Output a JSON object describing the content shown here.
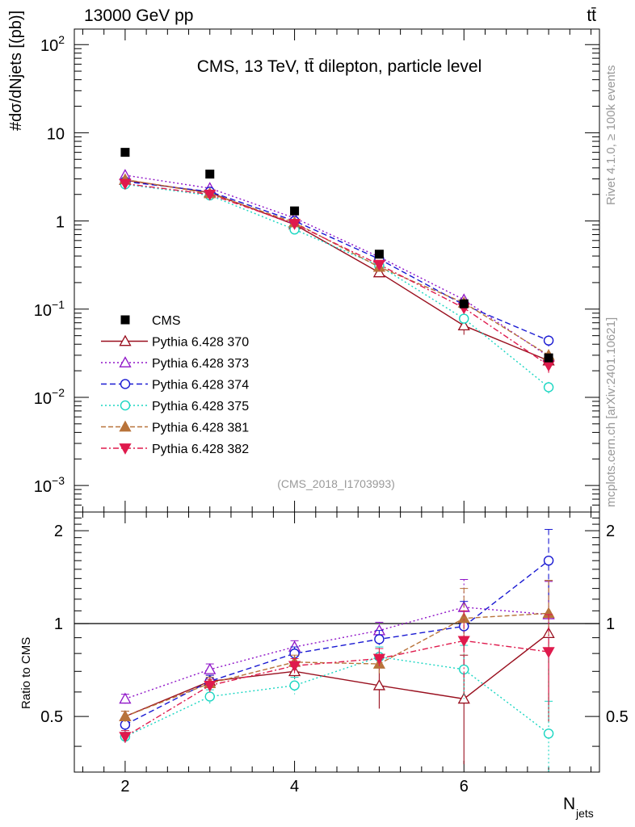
{
  "header": {
    "left": "13000 GeV pp",
    "right": "tt̄"
  },
  "side_text": {
    "rivet": "Rivet 4.1.0, ≥ 100k events",
    "mcplots": "mcplots.cern.ch [arXiv:2401.10621]"
  },
  "chart_data": {
    "type": "scatter",
    "title": "CMS, 13 TeV, tt̄ dilepton, particle level",
    "analysis_id": "(CMS_2018_I1703993)",
    "xlabel": "N",
    "xlabel_sub": "jets",
    "ylabel": "#dσ/dNjets [(pb)]",
    "ratio_ylabel": "Ratio to CMS",
    "x": [
      2,
      3,
      4,
      5,
      6,
      7
    ],
    "xlim": [
      1.4,
      7.6
    ],
    "ylim": [
      0.0005,
      150
    ],
    "yscale": "log",
    "ratio_ylim": [
      0.33,
      2.3
    ],
    "ratio_reference": 1,
    "x_tick_labels": [
      "2",
      "4",
      "6"
    ],
    "y_tick_labels": [
      {
        "value": 100,
        "base": "10",
        "exp": "2"
      },
      {
        "value": 10,
        "base": "10",
        "exp": ""
      },
      {
        "value": 1,
        "base": "1",
        "exp": ""
      },
      {
        "value": 0.1,
        "base": "10",
        "exp": "−1"
      },
      {
        "value": 0.01,
        "base": "10",
        "exp": "−2"
      },
      {
        "value": 0.001,
        "base": "10",
        "exp": "−3"
      }
    ],
    "ratio_tick_labels": [
      "0.5",
      "1",
      "2"
    ],
    "data": {
      "name": "CMS",
      "values": [
        6.0,
        3.4,
        1.3,
        0.42,
        0.115,
        0.028
      ],
      "color": "#000000"
    },
    "series": [
      {
        "name": "Pythia 6.428 370",
        "color": "#990f1e",
        "dash": "",
        "marker": "tri-up-open",
        "values": [
          2.9,
          2.1,
          0.91,
          0.26,
          0.065,
          0.026
        ],
        "ratio": [
          0.5,
          0.65,
          0.7,
          0.63,
          0.57,
          0.93
        ],
        "ratio_err": [
          0.02,
          0.03,
          0.04,
          0.1,
          0.22,
          0.45
        ]
      },
      {
        "name": "Pythia 6.428 373",
        "color": "#8f14c8",
        "dash": "2,3",
        "marker": "tri-up-open",
        "values": [
          3.3,
          2.35,
          1.08,
          0.39,
          0.128,
          0.029
        ],
        "ratio": [
          0.57,
          0.71,
          0.84,
          0.95,
          1.13,
          1.07
        ],
        "ratio_err": [
          0.02,
          0.03,
          0.04,
          0.06,
          0.26,
          0.3
        ]
      },
      {
        "name": "Pythia 6.428 374",
        "color": "#1919d2",
        "dash": "7,4",
        "marker": "circle-open",
        "values": [
          2.8,
          2.15,
          1.0,
          0.37,
          0.112,
          0.044
        ],
        "ratio": [
          0.47,
          0.65,
          0.8,
          0.89,
          0.98,
          1.6
        ],
        "ratio_err": [
          0.02,
          0.03,
          0.04,
          0.06,
          0.2,
          0.42
        ]
      },
      {
        "name": "Pythia 6.428 375",
        "color": "#1ad6c2",
        "dash": "2,3",
        "marker": "circle-open",
        "values": [
          2.6,
          1.95,
          0.8,
          0.31,
          0.078,
          0.013
        ],
        "ratio": [
          0.43,
          0.58,
          0.63,
          0.78,
          0.71,
          0.44
        ],
        "ratio_err": [
          0.02,
          0.03,
          0.04,
          0.06,
          0.14,
          0.12
        ]
      },
      {
        "name": "Pythia 6.428 381",
        "color": "#b8733a",
        "dash": "6,3",
        "marker": "tri-up-filled",
        "values": [
          2.95,
          2.05,
          0.96,
          0.3,
          0.118,
          0.03
        ],
        "ratio": [
          0.5,
          0.64,
          0.75,
          0.74,
          1.04,
          1.08
        ],
        "ratio_err": [
          0.02,
          0.03,
          0.04,
          0.05,
          0.26,
          0.3
        ]
      },
      {
        "name": "Pythia 6.428 382",
        "color": "#df1a4d",
        "dash": "7,3,2,3",
        "marker": "tri-down-filled",
        "values": [
          2.65,
          2.0,
          0.93,
          0.32,
          0.103,
          0.023
        ],
        "ratio": [
          0.43,
          0.63,
          0.73,
          0.77,
          0.88,
          0.81
        ],
        "ratio_err": [
          0.02,
          0.03,
          0.04,
          0.06,
          0.22,
          0.26
        ]
      }
    ]
  }
}
